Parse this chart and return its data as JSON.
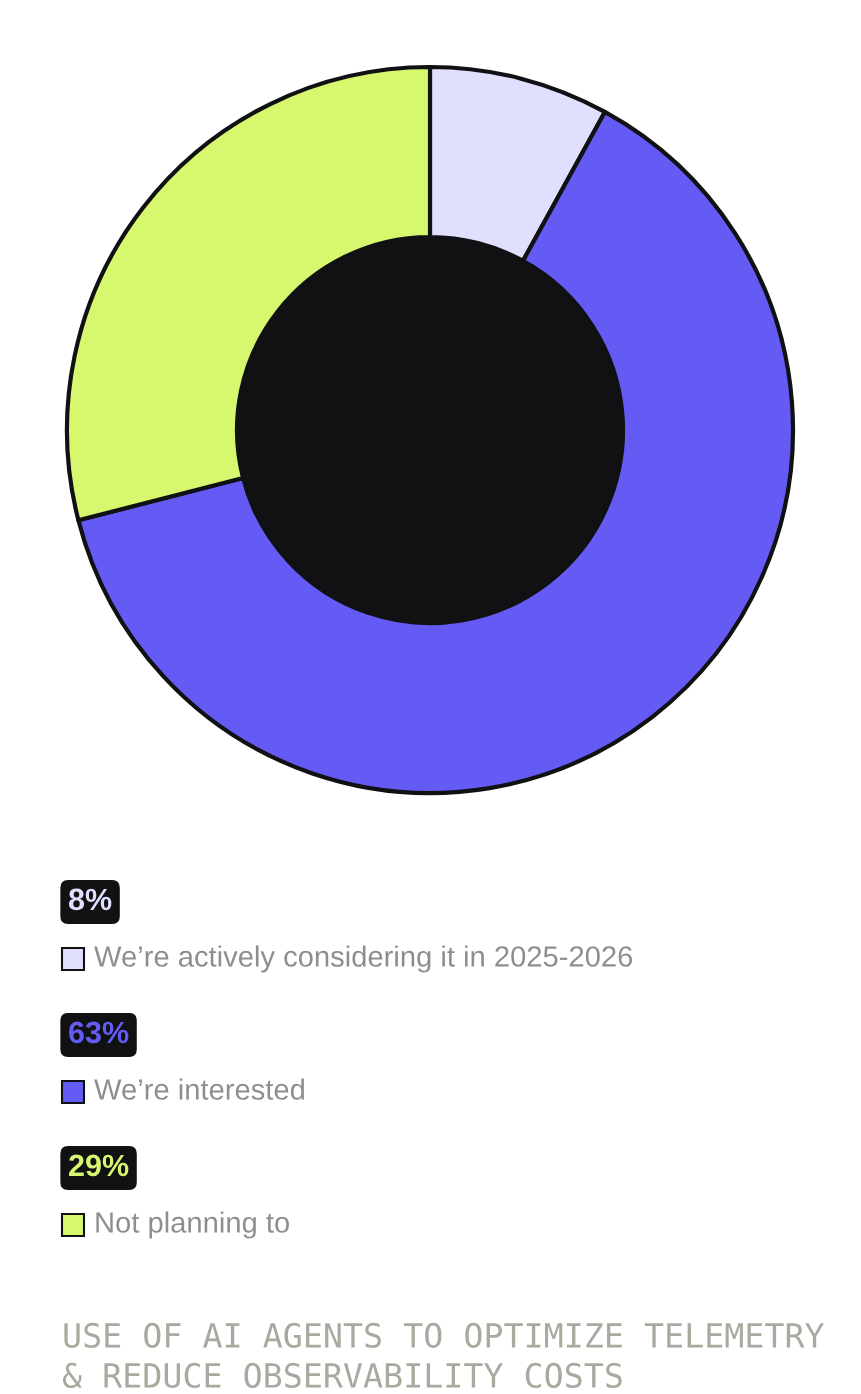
{
  "chart_data": {
    "type": "donut",
    "title": "USE OF AI AGENTS TO OPTIMIZE TELEMETRY & REDUCE OBSERVABILITY COSTS",
    "categories": [
      "We’re actively considering it in 2025-2026",
      "We’re interested",
      "Not planning to"
    ],
    "values": [
      8,
      63,
      29
    ],
    "value_labels": [
      "8%",
      "63%",
      "29%"
    ],
    "colors": [
      "#e0e0fe",
      "#635bf4",
      "#d6f76e"
    ],
    "legend": "bottom"
  }
}
